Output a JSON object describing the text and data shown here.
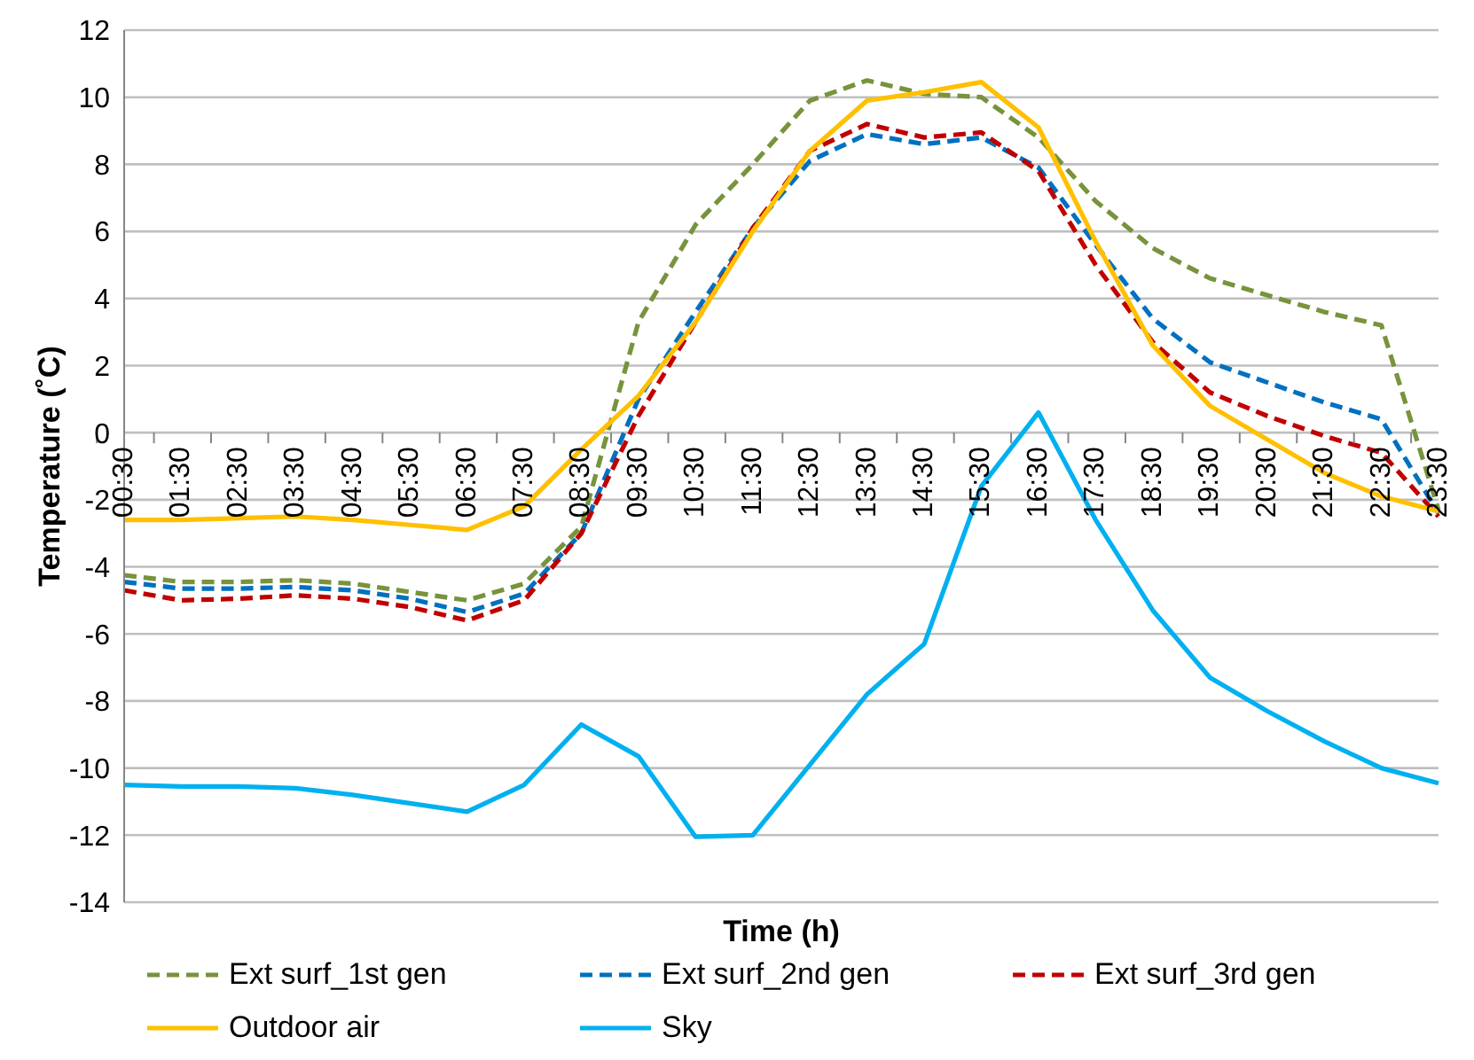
{
  "chart_data": {
    "type": "line",
    "xlabel": "Time (h)",
    "ylabel": "Temperature (˚C)",
    "categories": [
      "00:30",
      "01:30",
      "02:30",
      "03:30",
      "04:30",
      "05:30",
      "06:30",
      "07:30",
      "08:30",
      "09:30",
      "10:30",
      "11:30",
      "12:30",
      "13:30",
      "14:30",
      "15:30",
      "16:30",
      "17:30",
      "18:30",
      "19:30",
      "20:30",
      "21:30",
      "22:30",
      "23:30"
    ],
    "series": [
      {
        "name": "Ext surf_1st gen",
        "color": "#77933c",
        "line_style": "dashed",
        "values": [
          -4.25,
          -4.45,
          -4.45,
          -4.4,
          -4.5,
          -4.75,
          -5.0,
          -4.5,
          -2.8,
          3.3,
          6.2,
          8.0,
          9.9,
          10.5,
          10.1,
          10.0,
          8.8,
          6.9,
          5.5,
          4.6,
          4.1,
          3.6,
          3.2,
          -2.3
        ]
      },
      {
        "name": "Ext surf_2nd gen",
        "color": "#0070c0",
        "line_style": "dashed",
        "values": [
          -4.45,
          -4.65,
          -4.65,
          -4.6,
          -4.7,
          -4.95,
          -5.35,
          -4.8,
          -3.0,
          1.0,
          3.6,
          6.1,
          8.1,
          8.9,
          8.6,
          8.8,
          7.9,
          5.6,
          3.4,
          2.1,
          1.5,
          0.9,
          0.4,
          -2.4
        ]
      },
      {
        "name": "Ext surf_3rd gen",
        "color": "#c00000",
        "line_style": "dashed",
        "values": [
          -4.7,
          -5.0,
          -4.95,
          -4.85,
          -4.95,
          -5.2,
          -5.6,
          -5.0,
          -3.0,
          0.5,
          3.3,
          6.1,
          8.4,
          9.2,
          8.8,
          8.95,
          7.8,
          5.0,
          2.7,
          1.2,
          0.5,
          -0.1,
          -0.6,
          -2.5
        ]
      },
      {
        "name": "Outdoor air",
        "color": "#ffc000",
        "line_style": "solid",
        "values": [
          -2.6,
          -2.6,
          -2.55,
          -2.5,
          -2.6,
          -2.75,
          -2.9,
          -2.2,
          -0.5,
          1.1,
          3.3,
          6.0,
          8.4,
          9.9,
          10.15,
          10.45,
          9.1,
          5.7,
          2.6,
          0.8,
          -0.2,
          -1.2,
          -1.9,
          -2.35
        ]
      },
      {
        "name": "Sky",
        "color": "#00b0f0",
        "line_style": "solid",
        "values": [
          -10.5,
          -10.55,
          -10.55,
          -10.6,
          -10.8,
          -11.05,
          -11.3,
          -10.5,
          -8.7,
          -9.65,
          -12.05,
          -12.0,
          -9.9,
          -7.8,
          -6.3,
          -1.6,
          0.6,
          -2.6,
          -5.3,
          -7.3,
          -8.3,
          -9.2,
          -10.0,
          -10.45
        ]
      }
    ],
    "ylim": [
      -14,
      12
    ],
    "yticks": [
      -14,
      -12,
      -10,
      -8,
      -6,
      -4,
      -2,
      0,
      2,
      4,
      6,
      8,
      10,
      12
    ],
    "grid": "y",
    "legend": "bottom",
    "marker": "none"
  }
}
